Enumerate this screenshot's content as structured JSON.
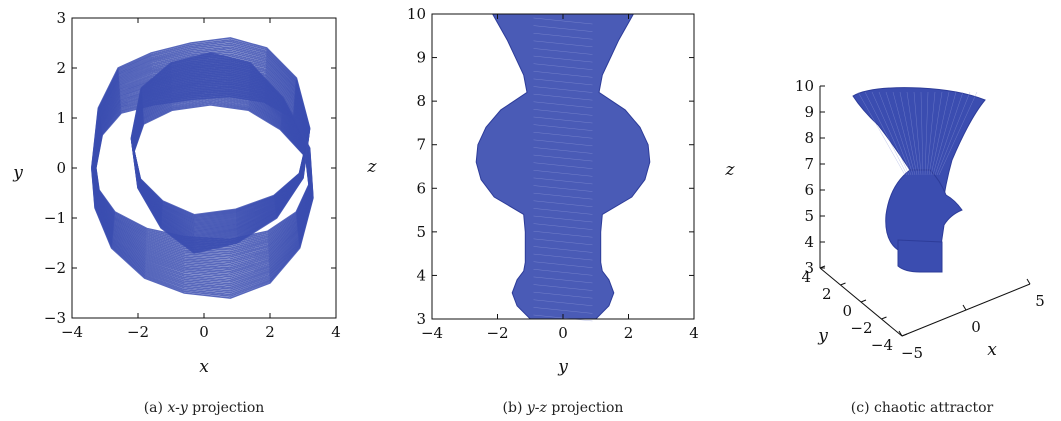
{
  "colors": {
    "trajectory": "#3b4db0",
    "axis": "#111111"
  },
  "chart_data": [
    {
      "type": "line",
      "caption_prefix": "(a) ",
      "caption_italic": "x-y",
      "caption_suffix": " projection",
      "xlabel": "x",
      "ylabel": "y",
      "xlim": [
        -4,
        4
      ],
      "ylim": [
        -3,
        3
      ],
      "xticks": [
        "−4",
        "−2",
        "0",
        "2",
        "4"
      ],
      "yticks": [
        "3",
        "2",
        "1",
        "0",
        "−1",
        "−2",
        "−3"
      ],
      "series": [
        {
          "x": [
            -3.4,
            -3.2,
            -2.6,
            -1.6,
            -0.4,
            0.8,
            1.9,
            2.8,
            3.2,
            3.0,
            2.2,
            1.0,
            -0.3,
            -1.3,
            -2.0,
            -2.2,
            -1.9,
            -1.0,
            0.2,
            1.4,
            2.4,
            3.2,
            3.3,
            2.9,
            2.0,
            0.8,
            -0.6,
            -1.8,
            -2.8,
            -3.3,
            -3.4
          ],
          "y": [
            0.0,
            1.2,
            2.0,
            2.3,
            2.5,
            2.6,
            2.4,
            1.8,
            0.8,
            -0.2,
            -1.0,
            -1.5,
            -1.7,
            -1.2,
            -0.4,
            0.6,
            1.6,
            2.1,
            2.3,
            2.1,
            1.4,
            0.4,
            -0.6,
            -1.6,
            -2.3,
            -2.6,
            -2.5,
            -2.2,
            -1.6,
            -0.8,
            0.0
          ]
        }
      ]
    },
    {
      "type": "area",
      "caption_prefix": "(b) ",
      "caption_italic": "y-z",
      "caption_suffix": " projection",
      "xlabel": "y",
      "ylabel": "z",
      "xlim": [
        -4,
        4
      ],
      "ylim": [
        3,
        10
      ],
      "xticks": [
        "−4",
        "−2",
        "0",
        "2",
        "4"
      ],
      "yticks": [
        "10",
        "9",
        "8",
        "7",
        "6",
        "5",
        "4",
        "3"
      ],
      "envelope": {
        "z": [
          3.0,
          3.3,
          3.6,
          3.9,
          4.1,
          4.3,
          4.6,
          5.0,
          5.4,
          5.8,
          6.2,
          6.6,
          7.0,
          7.4,
          7.8,
          8.2,
          8.6,
          9.0,
          9.4,
          9.8,
          10.0
        ],
        "half_width": [
          1.0,
          1.4,
          1.55,
          1.4,
          1.2,
          1.15,
          1.15,
          1.15,
          1.2,
          2.1,
          2.5,
          2.65,
          2.6,
          2.35,
          1.9,
          1.1,
          1.2,
          1.45,
          1.7,
          2.0,
          2.15
        ]
      }
    },
    {
      "type": "scatter",
      "caption": "(c) chaotic attractor",
      "xlabel": "x",
      "ylabel": "y",
      "zlabel": "z",
      "xlim": [
        -5,
        5
      ],
      "ylim": [
        -4,
        4
      ],
      "zlim": [
        3,
        10
      ],
      "xticks": [
        "−5",
        "0",
        "5"
      ],
      "yticks": [
        "4",
        "2",
        "0",
        "−2",
        "−4"
      ],
      "zticks": [
        "10",
        "9",
        "8",
        "7",
        "6",
        "5",
        "4",
        "3"
      ]
    }
  ]
}
